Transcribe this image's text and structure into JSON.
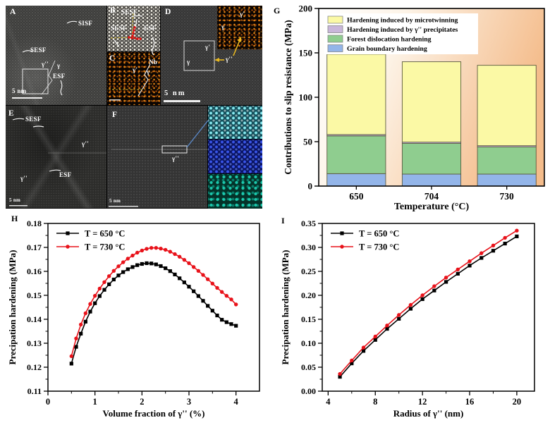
{
  "labels": {
    "g": "G",
    "h": "H",
    "i": "I"
  },
  "tem": {
    "a": {
      "letter": "A",
      "sisf": "SISF",
      "sesf": "SESF",
      "gamma2": "γ''",
      "gamma": "γ",
      "esf": "ESF",
      "scale": "5 nm"
    },
    "b": {
      "letter": "B",
      "sesf_top": "SESF",
      "sesf_left": "SESF",
      "esf": "ESF"
    },
    "c": {
      "letter": "C",
      "nb": "Nb",
      "gamma1": "γ'",
      "gamma": "γ"
    },
    "d": {
      "letter": "D",
      "box_gamma1": "γ'",
      "box_gamma": "γ",
      "gamma2": "γ''",
      "inset_gamma1": "γ'",
      "inset_gamma": "γ",
      "scale": "5 nm"
    },
    "e": {
      "letter": "E",
      "sesf": "SESF",
      "gamma2_right": "γ''",
      "esf": "ESF",
      "gamma2_left": "γ''",
      "scale": "5 nm"
    },
    "f": {
      "letter": "F",
      "gamma2": "γ''",
      "scale": "5 nm"
    }
  },
  "chart_data": [
    {
      "type": "bar",
      "stacked": true,
      "panel": "G",
      "xlabel": "Temperature (°C)",
      "ylabel": "Contributions to slip resistance (MPa)",
      "categories": [
        "650",
        "704",
        "730"
      ],
      "ylim": [
        0,
        200
      ],
      "yticks": {
        "values": [
          0,
          50,
          100,
          150,
          200
        ],
        "labels": [
          "0",
          "50",
          "100",
          "150",
          "200"
        ]
      },
      "grid": false,
      "legend_position": "top-left-inside",
      "bg_gradient": [
        "#ffffff",
        "#fdf4e8",
        "#f4bc8b"
      ],
      "bar_edge_color": "#5a5a40",
      "series": [
        {
          "name": "Grain boundary hardening",
          "color": "#93b5e9",
          "values": [
            14,
            13.5,
            13.5
          ]
        },
        {
          "name": "Forest dislocation hardening",
          "color": "#8fcd8f",
          "values": [
            42.5,
            34.5,
            30.5
          ]
        },
        {
          "name": "Hardening induced by γ'' precipitates",
          "color": "#c9b6da",
          "values": [
            1.5,
            1.5,
            1.5
          ]
        },
        {
          "name": "Hardening induced by microtwinning",
          "color": "#fbf9a5",
          "values": [
            90.5,
            90.5,
            90.5
          ]
        }
      ],
      "legend_display_order": [
        3,
        2,
        1,
        0
      ],
      "totals": [
        148.5,
        140,
        136
      ]
    },
    {
      "type": "line",
      "panel": "H",
      "xlabel": "Volume fraction of γ'' (%)",
      "ylabel": "Precipation hardening (MPa)",
      "xlim": [
        0,
        4.5
      ],
      "ylim": [
        0.11,
        0.18
      ],
      "xticks": {
        "values": [
          0,
          1,
          2,
          3,
          4
        ],
        "labels": [
          "0",
          "1",
          "2",
          "3",
          "4"
        ]
      },
      "xminor": [
        0.5,
        1.5,
        2.5,
        3.5
      ],
      "yticks": {
        "values": [
          0.11,
          0.12,
          0.13,
          0.14,
          0.15,
          0.16,
          0.17,
          0.18
        ],
        "labels": [
          "0.11",
          "0.12",
          "0.13",
          "0.14",
          "0.15",
          "0.16",
          "0.17",
          "0.18"
        ]
      },
      "yminor": [
        0.115,
        0.125,
        0.135,
        0.145,
        0.155,
        0.165,
        0.175
      ],
      "grid": false,
      "legend_position": "top-left-inside",
      "series": [
        {
          "name": "T = 650 °C",
          "color": "#000000",
          "marker": "square",
          "x": [
            0.5,
            0.6,
            0.7,
            0.8,
            0.9,
            1.0,
            1.1,
            1.2,
            1.3,
            1.4,
            1.5,
            1.6,
            1.7,
            1.8,
            1.9,
            2.0,
            2.1,
            2.2,
            2.3,
            2.4,
            2.5,
            2.6,
            2.7,
            2.8,
            2.9,
            3.0,
            3.1,
            3.2,
            3.3,
            3.4,
            3.5,
            3.6,
            3.7,
            3.8,
            3.9,
            4.0
          ],
          "y": [
            0.1215,
            0.1285,
            0.134,
            0.139,
            0.1432,
            0.1467,
            0.1497,
            0.1523,
            0.1546,
            0.1566,
            0.1583,
            0.1597,
            0.1609,
            0.1618,
            0.1626,
            0.1631,
            0.1634,
            0.1633,
            0.1629,
            0.1622,
            0.1613,
            0.1601,
            0.1587,
            0.1571,
            0.1554,
            0.1536,
            0.1517,
            0.1497,
            0.1477,
            0.1456,
            0.1436,
            0.1416,
            0.1398,
            0.1388,
            0.138,
            0.1373
          ]
        },
        {
          "name": "T = 730 °C",
          "color": "#e8121a",
          "marker": "circle",
          "x": [
            0.5,
            0.6,
            0.7,
            0.8,
            0.9,
            1.0,
            1.1,
            1.2,
            1.3,
            1.4,
            1.5,
            1.6,
            1.7,
            1.8,
            1.9,
            2.0,
            2.1,
            2.2,
            2.3,
            2.4,
            2.5,
            2.6,
            2.7,
            2.8,
            2.9,
            3.0,
            3.1,
            3.2,
            3.3,
            3.4,
            3.5,
            3.6,
            3.7,
            3.8,
            3.9,
            4.0
          ],
          "y": [
            0.1246,
            0.132,
            0.1378,
            0.1425,
            0.1464,
            0.1498,
            0.1528,
            0.1555,
            0.158,
            0.1602,
            0.1621,
            0.1638,
            0.1653,
            0.1666,
            0.1678,
            0.1687,
            0.1694,
            0.1698,
            0.1698,
            0.1695,
            0.169,
            0.1682,
            0.1672,
            0.1661,
            0.1648,
            0.1634,
            0.1618,
            0.1602,
            0.1585,
            0.1567,
            0.1549,
            0.1531,
            0.1514,
            0.1498,
            0.1483,
            0.1462
          ]
        }
      ]
    },
    {
      "type": "line",
      "panel": "I",
      "xlabel": "Radius of γ'' (nm)",
      "ylabel": "Precipation hardening (MPa)",
      "xlim": [
        3.5,
        21.5
      ],
      "ylim": [
        0,
        0.35
      ],
      "xticks": {
        "values": [
          4,
          8,
          12,
          16,
          20
        ],
        "labels": [
          "4",
          "8",
          "12",
          "16",
          "20"
        ]
      },
      "xminor": [
        6,
        10,
        14,
        18
      ],
      "yticks": {
        "values": [
          0,
          0.05,
          0.1,
          0.15,
          0.2,
          0.25,
          0.3,
          0.35
        ],
        "labels": [
          "0.00",
          "0.05",
          "0.10",
          "0.15",
          "0.20",
          "0.25",
          "0.30",
          "0.35"
        ]
      },
      "yminor": [
        0.025,
        0.075,
        0.125,
        0.175,
        0.225,
        0.275,
        0.325
      ],
      "grid": false,
      "legend_position": "top-left-inside",
      "series": [
        {
          "name": "T = 650 °C",
          "color": "#000000",
          "marker": "square",
          "x": [
            5,
            6,
            7,
            8,
            9,
            10,
            11,
            12,
            13,
            14,
            15,
            16,
            17,
            18,
            19,
            20
          ],
          "y": [
            0.03,
            0.058,
            0.084,
            0.107,
            0.13,
            0.151,
            0.172,
            0.192,
            0.21,
            0.228,
            0.245,
            0.262,
            0.278,
            0.293,
            0.308,
            0.323
          ]
        },
        {
          "name": "T = 730 °C",
          "color": "#e8121a",
          "marker": "circle",
          "x": [
            5,
            6,
            7,
            8,
            9,
            10,
            11,
            12,
            13,
            14,
            15,
            16,
            17,
            18,
            19,
            20
          ],
          "y": [
            0.036,
            0.064,
            0.091,
            0.114,
            0.137,
            0.159,
            0.18,
            0.2,
            0.219,
            0.237,
            0.254,
            0.271,
            0.288,
            0.304,
            0.32,
            0.335
          ]
        }
      ]
    }
  ]
}
